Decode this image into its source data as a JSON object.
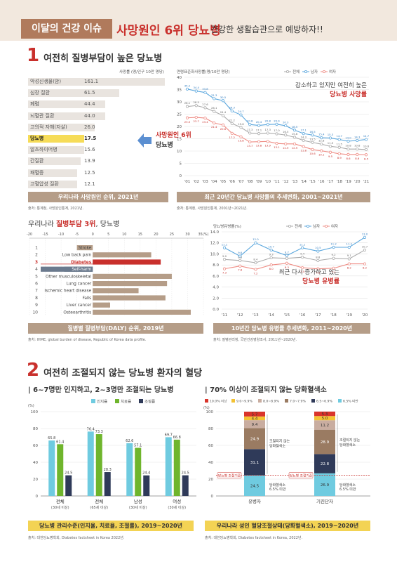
{
  "banner": {
    "tag": "이달의 건강 이슈",
    "title": "사망원인 6위 당뇨병",
    "subtitle": "건강한 생활습관으로 예방하자!!"
  },
  "sec1": {
    "num": "1",
    "title": "여전히 질병부담이 높은 당뇨병"
  },
  "sec2": {
    "num": "2",
    "title": "여전히 조절되지 않는 당뇨병 환자의 혈당"
  },
  "colors": {
    "red": "#c9302c",
    "brown": "#b59d88",
    "yellow": "#f3d354",
    "blue": "#2e7bbf",
    "teal": "#6fcbe0",
    "green": "#6fb52c",
    "navy": "#2f3a59"
  },
  "death_rank": {
    "unit": "사망률 (명/인구 10만 명당)",
    "items": [
      {
        "name": "악성신생물(암)",
        "value": "161.1"
      },
      {
        "name": "심장 질환",
        "value": "61.5"
      },
      {
        "name": "폐렴",
        "value": "44.4"
      },
      {
        "name": "뇌혈관 질환",
        "value": "44.0"
      },
      {
        "name": "고의적 자해(자살)",
        "value": "26.0"
      },
      {
        "name": "당뇨병",
        "value": "17.5"
      },
      {
        "name": "알츠하이머병",
        "value": "15.6"
      },
      {
        "name": "간질환",
        "value": "13.9"
      },
      {
        "name": "패혈증",
        "value": "12.5"
      },
      {
        "name": "고혈압성 질환",
        "value": "12.1"
      }
    ],
    "callout_line1": "사망원인 6위",
    "callout_line2": "당뇨병",
    "caption": "우리나라 사망원인 순위, 2021년",
    "source": "출처: 통계청, 사망원인통계, 2021년."
  },
  "mortality_trend": {
    "unit": "연령표준화사망률(명/10만 명당)",
    "legend": [
      "전체",
      "남자",
      "여자"
    ],
    "annot_line1": "감소하고 있지만 여전히 높은",
    "annot_line2": "당뇨병 사망률",
    "caption": "최근 20년간 당뇨병 사망률의 추세변화, 2001~2021년",
    "source": "출처: 통계청, 사망원인통계, 2001년~2021년."
  },
  "daly": {
    "title_pre": "우리나라 ",
    "title_hl": "질병부담 3위",
    "title_post": ", 당뇨병",
    "axis_ticks": [
      "-20",
      "-15",
      "-10",
      "-5",
      "0",
      "5",
      "10",
      "15",
      "20",
      "25",
      "30",
      "35(%)"
    ],
    "caption": "질병별 질병부담(DALY) 순위, 2019년",
    "source": "출처: IHME, global burden of disease, Republic of Korea data profile."
  },
  "prevalence_trend": {
    "unit": "당뇨병유병률(%)",
    "legend": [
      "전체",
      "남자",
      "여자"
    ],
    "annot_line1": "최근 다시 증가하고 있는",
    "annot_line2": "당뇨병 유병률",
    "caption": "10년간 당뇨병 유병률 추세변화, 2011~2020년",
    "source": "출처: 질병관리청, 국민건강영양조사, 2011년~2020년."
  },
  "management": {
    "head": "| 6~7명만 인지하고, 2~3명만 조절되는 당뇨병",
    "unit": "(%)",
    "legend": [
      "인지율",
      "치료율",
      "조절률"
    ],
    "caption": "당뇨병 관리수준(인지율, 치료율, 조절률), 2019~2020년",
    "source": "출처: 대한당뇨병학회, Diabetes factsheet in Korea 2022년."
  },
  "glycemic": {
    "head": "| 70% 이상이 조절되지 않는 당화혈색소",
    "unit": "(%)",
    "legend": [
      "10.0% 이상",
      "9.0~9.9%",
      "8.0~8.9%",
      "7.0~7.9%",
      "6.5~6.9%",
      "6.5% 미만"
    ],
    "caption": "우리나라 성인 혈당조절상태(당화혈색소), 2019~2020년",
    "source": "출처: 대한당뇨병학회, Diabetes factsheet in Korea, 2022년.",
    "annot_uncontrolled_1": "조절되지 않는",
    "annot_uncontrolled_2": "당화혈색소",
    "annot_target": "당뇨병 조절기준",
    "annot_under_1": "당화혈색소",
    "annot_under_2": "6.5% 미만"
  },
  "chart_data": [
    {
      "type": "line",
      "title": "최근 20년간 당뇨병 사망률의 추세변화, 2001~2021년",
      "x": [
        "'01",
        "'02",
        "'03",
        "'04",
        "'05",
        "'06",
        "'07",
        "'08",
        "'09",
        "'10",
        "'11",
        "'12",
        "'13",
        "'14",
        "'15",
        "'16",
        "'17",
        "'18",
        "'19",
        "'20",
        "'21"
      ],
      "ylim": [
        0,
        40
      ],
      "yticks": [
        0,
        5,
        10,
        15,
        20,
        25,
        30,
        35,
        40
      ],
      "series": [
        {
          "name": "전체",
          "values": [
            28.1,
            28.5,
            27.6,
            26.1,
            24.4,
            21.2,
            19.6,
            17.3,
            17.1,
            17.3,
            17.0,
            16.5,
            15.6,
            14.3,
            13.5,
            12.8,
            11.9,
            11.5,
            10.8,
            10.8,
            10.6
          ]
        },
        {
          "name": "남자",
          "values": [
            35.2,
            34.4,
            33.8,
            31.3,
            30.5,
            26.3,
            24.7,
            20.8,
            20.4,
            20.8,
            20.9,
            20.3,
            18.5,
            17.1,
            16.5,
            15.4,
            15.3,
            14.7,
            14.0,
            14.3,
            14.7
          ]
        },
        {
          "name": "여자",
          "values": [
            23.5,
            23.7,
            23.4,
            21.4,
            20.6,
            17.2,
            15.8,
            13.7,
            13.8,
            13.9,
            13.1,
            12.9,
            12.9,
            11.8,
            10.6,
            10.1,
            9.5,
            8.9,
            8.6,
            8.6,
            8.5
          ]
        }
      ]
    },
    {
      "type": "bar",
      "title": "질병별 질병부담(DALY) 순위, 2019년",
      "categories": [
        "Stroke",
        "Low back pain",
        "Diabetes",
        "Self-harm",
        "Other musculoskeletal",
        "Lung cancer",
        "Ischemic heart disease",
        "Falls",
        "Liver cancer",
        "Osteoarthritis"
      ],
      "ranks": [
        "1",
        "2",
        "3",
        "4",
        "5",
        "6",
        "7",
        "8",
        "9",
        "10"
      ],
      "values": [
        -5,
        18.5,
        21.5,
        -9,
        25,
        23.5,
        14.5,
        23,
        5.5,
        31
      ],
      "xlim": [
        -20,
        35
      ],
      "xlabel": "(%)"
    },
    {
      "type": "line",
      "title": "10년간 당뇨병 유병률 추세변화, 2011~2020년",
      "x": [
        "'11",
        "'12",
        "'13",
        "'14",
        "'15",
        "'16",
        "'17",
        "'18",
        "'19",
        "'20"
      ],
      "ylim": [
        0,
        14
      ],
      "yticks": [
        0.0,
        2.0,
        4.0,
        6.0,
        8.0,
        10.0,
        12.0,
        14.0
      ],
      "series": [
        {
          "name": "전체",
          "values": [
            9.0,
            8.8,
            8.4,
            9.3,
            9.2,
            9.4,
            8.8,
            9.2,
            9.1,
            10.7
          ]
        },
        {
          "name": "남자",
          "values": [
            11.1,
            9.6,
            12.0,
            10.7,
            9.7,
            11.1,
            10.5,
            11.2,
            11.2,
            13.0
          ]
        },
        {
          "name": "여자",
          "values": [
            7.3,
            7.8,
            7.2,
            8.0,
            8.3,
            7.5,
            7.3,
            7.4,
            8.2,
            8.2
          ]
        }
      ]
    },
    {
      "type": "bar",
      "title": "당뇨병 관리수준(인지율, 치료율, 조절률), 2019~2020년",
      "categories": [
        "전체",
        "전체",
        "남성",
        "여성"
      ],
      "category_notes": [
        "(30세 이상)",
        "(65세 이상)",
        "(30세 이상)",
        "(30세 이상)"
      ],
      "ylim": [
        0,
        100
      ],
      "yticks": [
        0,
        20,
        40,
        60,
        80,
        100
      ],
      "series": [
        {
          "name": "인지율",
          "values": [
            65.8,
            76.4,
            62.6,
            69.7
          ]
        },
        {
          "name": "치료율",
          "values": [
            61.4,
            73.3,
            57.1,
            66.8
          ]
        },
        {
          "name": "조절률",
          "values": [
            24.5,
            28.3,
            24.4,
            24.5
          ]
        }
      ]
    },
    {
      "type": "bar",
      "stacked": true,
      "title": "우리나라 성인 혈당조절상태(당화혈색소), 2019~2020년",
      "categories": [
        "유병자",
        "기진단자"
      ],
      "ylim": [
        0,
        100
      ],
      "yticks": [
        0,
        20,
        40,
        60,
        80,
        100
      ],
      "series": [
        {
          "name": "6.5% 미만",
          "values": [
            24.5,
            26.9
          ]
        },
        {
          "name": "6.5~6.9%",
          "values": [
            31.1,
            22.8
          ]
        },
        {
          "name": "7.0~7.9%",
          "values": [
            24.9,
            28.9
          ]
        },
        {
          "name": "8.0~8.9%",
          "values": [
            9.4,
            11.2
          ]
        },
        {
          "name": "9.0~9.9%",
          "values": [
            4.4,
            5.0
          ]
        },
        {
          "name": "10.0% 이상",
          "values": [
            5.7,
            5.3
          ]
        }
      ]
    }
  ]
}
